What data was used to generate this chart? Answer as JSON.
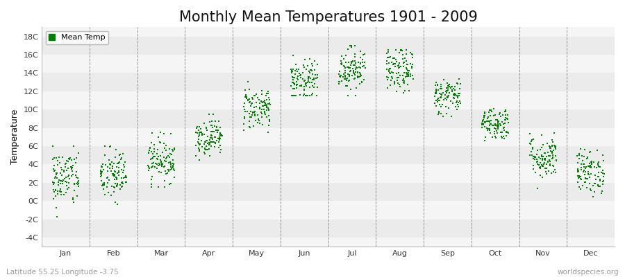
{
  "title": "Monthly Mean Temperatures 1901 - 2009",
  "ylabel": "Temperature",
  "ytick_labels": [
    "-4C",
    "-2C",
    "0C",
    "2C",
    "4C",
    "6C",
    "8C",
    "10C",
    "12C",
    "14C",
    "16C",
    "18C"
  ],
  "ytick_values": [
    -4,
    -2,
    0,
    2,
    4,
    6,
    8,
    10,
    12,
    14,
    16,
    18
  ],
  "ylim": [
    -5.0,
    19.0
  ],
  "months": [
    "Jan",
    "Feb",
    "Mar",
    "Apr",
    "May",
    "Jun",
    "Jul",
    "Aug",
    "Sep",
    "Oct",
    "Nov",
    "Dec"
  ],
  "dot_color": "#008000",
  "legend_label": "Mean Temp",
  "subtitle_left": "Latitude 55.25 Longitude -3.75",
  "subtitle_right": "worldspecies.org",
  "background_color": "#ffffff",
  "plot_bg_color": "#f5f5f5",
  "band_colors": [
    "#ebebeb",
    "#f5f5f5"
  ],
  "grid_color": "#666666",
  "title_fontsize": 15,
  "label_fontsize": 9,
  "tick_fontsize": 8,
  "n_years": 109,
  "monthly_means": [
    2.5,
    2.8,
    4.5,
    7.0,
    10.2,
    13.0,
    14.5,
    14.2,
    11.5,
    8.5,
    4.8,
    3.2
  ],
  "monthly_stds": [
    1.6,
    1.5,
    1.2,
    1.0,
    1.2,
    1.2,
    1.2,
    1.2,
    1.0,
    0.9,
    1.2,
    1.2
  ],
  "monthly_mins": [
    -3.5,
    -3.0,
    1.5,
    4.5,
    7.5,
    11.5,
    11.5,
    11.0,
    8.5,
    6.0,
    1.0,
    0.5
  ],
  "monthly_maxs": [
    6.0,
    6.0,
    7.5,
    9.5,
    14.0,
    16.0,
    17.0,
    16.5,
    14.5,
    11.0,
    8.5,
    6.5
  ]
}
